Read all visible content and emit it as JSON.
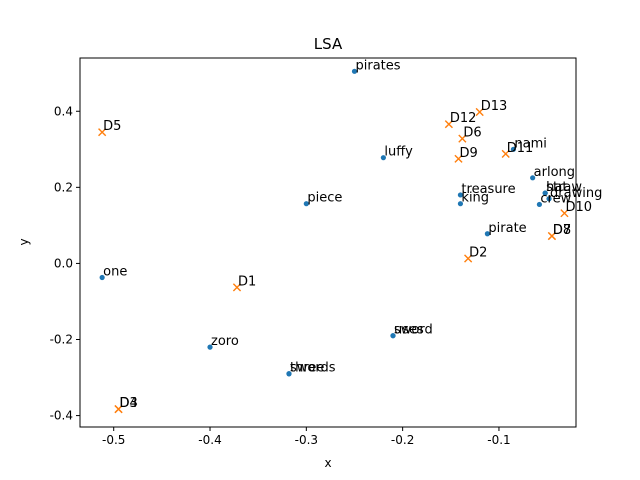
{
  "chart_data": {
    "type": "scatter",
    "title": "LSA",
    "xlabel": "x",
    "ylabel": "y",
    "xlim": [
      -0.535,
      -0.02
    ],
    "ylim": [
      -0.43,
      0.54
    ],
    "xticks": [
      "-0.5",
      "-0.4",
      "-0.3",
      "-0.2",
      "-0.1"
    ],
    "xtick_values": [
      -0.5,
      -0.4,
      -0.3,
      -0.2,
      -0.1
    ],
    "yticks": [
      "-0.4",
      "-0.2",
      "0.0",
      "0.2",
      "0.4"
    ],
    "ytick_values": [
      -0.4,
      -0.2,
      0.0,
      0.2,
      0.4
    ],
    "grid": false,
    "series": [
      {
        "marker": "dot",
        "color": "#1f77b4",
        "points": [
          {
            "label": "pirates",
            "x": -0.25,
            "y": 0.505
          },
          {
            "label": "luffy",
            "x": -0.22,
            "y": 0.278
          },
          {
            "label": "piece",
            "x": -0.3,
            "y": 0.157
          },
          {
            "label": "one",
            "x": -0.512,
            "y": -0.037
          },
          {
            "label": "zoro",
            "x": -0.4,
            "y": -0.22
          },
          {
            "label": "swords",
            "x": -0.318,
            "y": -0.29
          },
          {
            "label": "three",
            "x": -0.318,
            "y": -0.29
          },
          {
            "label": "sword",
            "x": -0.21,
            "y": -0.19
          },
          {
            "label": "uses",
            "x": -0.21,
            "y": -0.19
          },
          {
            "label": "treasure",
            "x": -0.14,
            "y": 0.18
          },
          {
            "label": "king",
            "x": -0.14,
            "y": 0.157
          },
          {
            "label": "pirate",
            "x": -0.112,
            "y": 0.078
          },
          {
            "label": "nami",
            "x": -0.085,
            "y": 0.3
          },
          {
            "label": "arlong",
            "x": -0.065,
            "y": 0.225
          },
          {
            "label": "straw",
            "x": -0.052,
            "y": 0.185
          },
          {
            "label": "hat",
            "x": -0.052,
            "y": 0.185
          },
          {
            "label": "drawing",
            "x": -0.048,
            "y": 0.17
          },
          {
            "label": "crew",
            "x": -0.058,
            "y": 0.155
          }
        ]
      },
      {
        "marker": "x",
        "color": "#ff7f0e",
        "points": [
          {
            "label": "D1",
            "x": -0.372,
            "y": -0.063
          },
          {
            "label": "D2",
            "x": -0.132,
            "y": 0.013
          },
          {
            "label": "D3",
            "x": -0.495,
            "y": -0.383
          },
          {
            "label": "D4",
            "x": -0.495,
            "y": -0.383
          },
          {
            "label": "D5",
            "x": -0.512,
            "y": 0.345
          },
          {
            "label": "D6",
            "x": -0.138,
            "y": 0.328
          },
          {
            "label": "D7",
            "x": -0.045,
            "y": 0.072
          },
          {
            "label": "D8",
            "x": -0.045,
            "y": 0.072
          },
          {
            "label": "D9",
            "x": -0.142,
            "y": 0.275
          },
          {
            "label": "D10",
            "x": -0.032,
            "y": 0.132
          },
          {
            "label": "D11",
            "x": -0.093,
            "y": 0.288
          },
          {
            "label": "D12",
            "x": -0.152,
            "y": 0.366
          },
          {
            "label": "D13",
            "x": -0.12,
            "y": 0.398
          }
        ]
      }
    ]
  }
}
